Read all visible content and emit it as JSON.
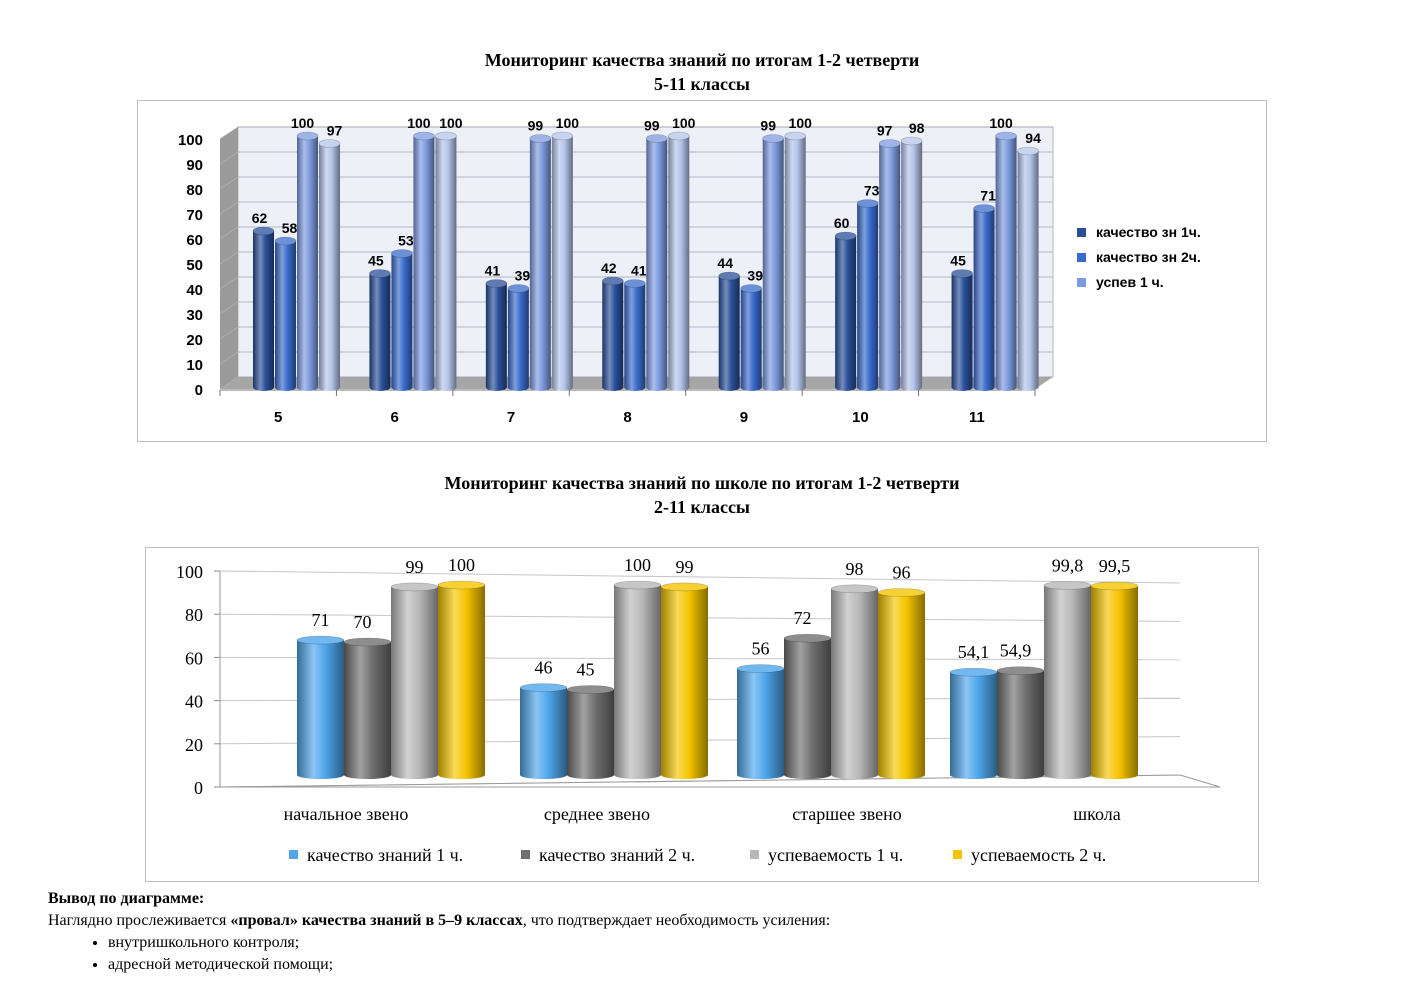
{
  "chart1_title": {
    "line1": "Мониторинг качества знаний по итогам 1-2 четверти",
    "line2": "5-11 классы"
  },
  "chart2_title": {
    "line1": "Мониторинг качества знаний по школе по итогам 1-2 четверти",
    "line2": "2-11 классы"
  },
  "chart_data": [
    {
      "type": "bar",
      "title": "Мониторинг качества знаний по итогам 1-2 четверти 5-11 классы",
      "categories": [
        "5",
        "6",
        "7",
        "8",
        "9",
        "10",
        "11"
      ],
      "series": [
        {
          "name": "качество зн 1ч.",
          "values": [
            62,
            45,
            41,
            42,
            44,
            60,
            45
          ],
          "color": "#2a4f9a"
        },
        {
          "name": "качество зн 2ч.",
          "values": [
            58,
            53,
            39,
            41,
            39,
            73,
            71
          ],
          "color": "#3a6ccc"
        },
        {
          "name": "успев 1 ч.",
          "values": [
            100,
            100,
            99,
            99,
            99,
            97,
            100
          ],
          "color": "#7e9be0"
        },
        {
          "name": "",
          "values": [
            97,
            100,
            100,
            100,
            100,
            98,
            94
          ],
          "color": "#b4c4ea"
        }
      ],
      "legend": [
        "качество зн 1ч.",
        "качество зн 2ч.",
        "успев 1 ч."
      ],
      "yticks": [
        "0",
        "10",
        "20",
        "30",
        "40",
        "50",
        "60",
        "70",
        "80",
        "90",
        "100"
      ],
      "ylim": [
        0,
        100
      ],
      "grid": true,
      "legend_position": "right"
    },
    {
      "type": "bar",
      "title": "Мониторинг качества знаний по школе по итогам 1-2 четверти 2-11 классы",
      "categories": [
        "начальное звено",
        "среднее звено",
        "старшее звено",
        "школа"
      ],
      "series": [
        {
          "name": "качество знаний 1 ч.",
          "values": [
            71,
            46,
            56,
            54.1
          ],
          "labels": [
            "71",
            "46",
            "56",
            "54,1"
          ],
          "color": "#4ea6ec"
        },
        {
          "name": "качество знаний 2 ч.",
          "values": [
            70,
            45,
            72,
            54.9
          ],
          "labels": [
            "70",
            "45",
            "72",
            "54,9"
          ],
          "color": "#707070"
        },
        {
          "name": "успеваемость 1 ч.",
          "values": [
            99,
            100,
            98,
            99.8
          ],
          "labels": [
            "99",
            "100",
            "98",
            "99,8"
          ],
          "color": "#b8b8b8"
        },
        {
          "name": "успеваемость 2 ч.",
          "values": [
            100,
            99,
            96,
            99.5
          ],
          "labels": [
            "100",
            "99",
            "96",
            "99,5"
          ],
          "color": "#f5c400"
        }
      ],
      "yticks": [
        "0",
        "20",
        "40",
        "60",
        "80",
        "100"
      ],
      "ylim": [
        0,
        100
      ],
      "grid": true,
      "legend_position": "bottom"
    }
  ],
  "conclusion": {
    "heading": "Вывод по диаграмме:",
    "text_before": "Наглядно прослеживается ",
    "text_bold": "«провал» качества знаний в 5–9 классах",
    "text_after": ", что подтверждает необходимость усиления:",
    "items": [
      "внутришкольного контроля;",
      "адресной методической помощи;"
    ]
  }
}
